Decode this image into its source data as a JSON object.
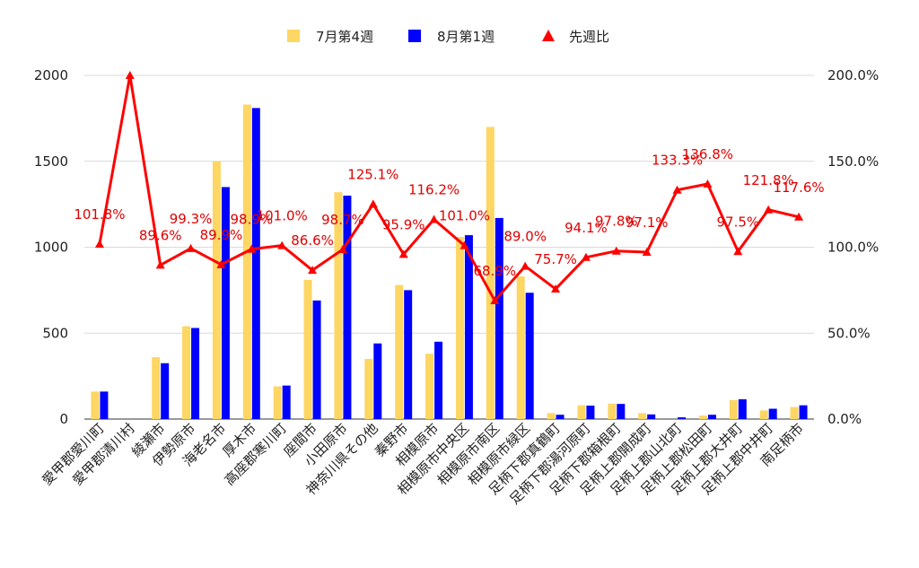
{
  "chart_data": {
    "type": "bar",
    "categories": [
      "愛甲郡愛川町",
      "愛甲郡清川村",
      "綾瀬市",
      "伊勢原市",
      "海老名市",
      "厚木市",
      "高座郡寒川町",
      "座間市",
      "小田原市",
      "神奈川県その他",
      "秦野市",
      "相模原市",
      "相模原市中央区",
      "相模原市南区",
      "相模原市緑区",
      "足柄下郡真鶴町",
      "足柄下郡湯河原町",
      "足柄下郡箱根町",
      "足柄上郡開成町",
      "足柄上郡山北町",
      "足柄上郡松田町",
      "足柄上郡大井町",
      "足柄上郡中井町",
      "南足柄市"
    ],
    "series": [
      {
        "name": "7月第4週",
        "color": "#fdd663",
        "values": [
          160,
          0,
          360,
          540,
          1500,
          1830,
          190,
          810,
          1320,
          350,
          780,
          380,
          1060,
          1700,
          830,
          35,
          80,
          90,
          35,
          0,
          20,
          110,
          50,
          70
        ]
      },
      {
        "name": "8月第1週",
        "color": "#0000ff",
        "values": [
          160,
          0,
          325,
          530,
          1350,
          1810,
          195,
          690,
          1300,
          440,
          750,
          450,
          1070,
          1170,
          735,
          25,
          78,
          88,
          27,
          10,
          25,
          115,
          60,
          80
        ]
      },
      {
        "name": "先週比",
        "color": "#ff0000",
        "axis": "right",
        "values": [
          101.8,
          200,
          89.6,
          99.3,
          89.9,
          98.9,
          101.0,
          86.6,
          98.7,
          125.1,
          95.9,
          116.2,
          101.0,
          68.9,
          89.0,
          75.7,
          94.1,
          97.8,
          97.1,
          133.3,
          136.8,
          97.5,
          121.8,
          117.6
        ],
        "labels": [
          "101.8%",
          "",
          "89.6%",
          "99.3%",
          "89.9%",
          "98.9%",
          "101.0%",
          "86.6%",
          "98.7%",
          "125.1%",
          "95.9%",
          "116.2%",
          "101.0%",
          "68.9%",
          "89.0%",
          "75.7%",
          "94.1%",
          "97.8%",
          "97.1%",
          "133.3%",
          "136.8%",
          "97.5%",
          "121.8%",
          "117.6%"
        ]
      }
    ],
    "ylim": [
      0,
      2000
    ],
    "yticks": [
      "0",
      "500",
      "1000",
      "1500",
      "2000"
    ],
    "y2lim": [
      0,
      200
    ],
    "y2ticks": [
      "0.0%",
      "50.0%",
      "100.0%",
      "150.0%",
      "200.0%"
    ],
    "legend_position": "top",
    "grid": true
  }
}
